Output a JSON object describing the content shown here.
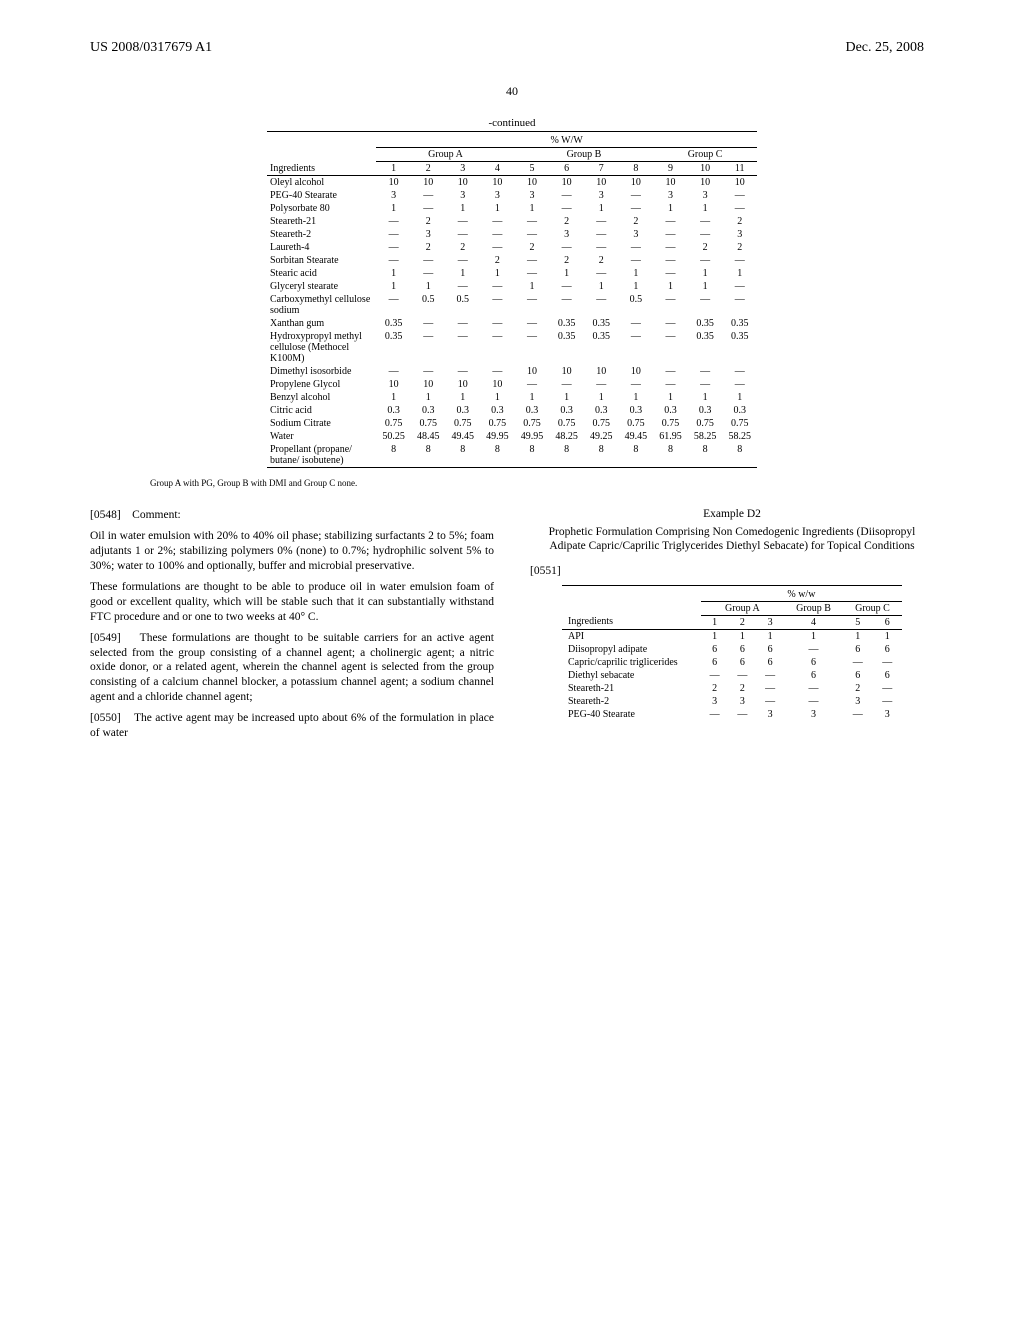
{
  "header": {
    "doc_id": "US 2008/0317679 A1",
    "date": "Dec. 25, 2008",
    "page_number": "40"
  },
  "table1": {
    "continued_label": "-continued",
    "super_header": "% W/W",
    "groups": [
      {
        "label": "Group A",
        "span": 4
      },
      {
        "label": "Group B",
        "span": 4
      },
      {
        "label": "Group C",
        "span": 3
      }
    ],
    "col_header_label": "Ingredients",
    "col_numbers": [
      "1",
      "2",
      "3",
      "4",
      "5",
      "6",
      "7",
      "8",
      "9",
      "10",
      "11"
    ],
    "rows": [
      {
        "label": "Oleyl alcohol",
        "vals": [
          "10",
          "10",
          "10",
          "10",
          "10",
          "10",
          "10",
          "10",
          "10",
          "10",
          "10"
        ]
      },
      {
        "label": "PEG-40 Stearate",
        "vals": [
          "3",
          "—",
          "3",
          "3",
          "3",
          "—",
          "3",
          "—",
          "3",
          "3",
          "—"
        ]
      },
      {
        "label": "Polysorbate 80",
        "vals": [
          "1",
          "—",
          "1",
          "1",
          "1",
          "—",
          "1",
          "—",
          "1",
          "1",
          "—"
        ]
      },
      {
        "label": "Steareth-21",
        "vals": [
          "—",
          "2",
          "—",
          "—",
          "—",
          "2",
          "—",
          "2",
          "—",
          "—",
          "2"
        ]
      },
      {
        "label": "Steareth-2",
        "vals": [
          "—",
          "3",
          "—",
          "—",
          "—",
          "3",
          "—",
          "3",
          "—",
          "—",
          "3"
        ]
      },
      {
        "label": "Laureth-4",
        "vals": [
          "—",
          "2",
          "2",
          "—",
          "2",
          "—",
          "—",
          "—",
          "—",
          "2",
          "2"
        ]
      },
      {
        "label": "Sorbitan Stearate",
        "vals": [
          "—",
          "—",
          "—",
          "2",
          "—",
          "2",
          "2",
          "—",
          "—",
          "—",
          "—"
        ]
      },
      {
        "label": "Stearic acid",
        "vals": [
          "1",
          "—",
          "1",
          "1",
          "—",
          "1",
          "—",
          "1",
          "—",
          "1",
          "1"
        ]
      },
      {
        "label": "Glyceryl stearate",
        "vals": [
          "1",
          "1",
          "—",
          "—",
          "1",
          "—",
          "1",
          "1",
          "1",
          "1",
          "—"
        ]
      },
      {
        "label": "Carboxymethyl cellulose sodium",
        "vals": [
          "—",
          "0.5",
          "0.5",
          "—",
          "—",
          "—",
          "—",
          "0.5",
          "—",
          "—",
          "—"
        ]
      },
      {
        "label": "Xanthan gum",
        "vals": [
          "0.35",
          "—",
          "—",
          "—",
          "—",
          "0.35",
          "0.35",
          "—",
          "—",
          "0.35",
          "0.35"
        ]
      },
      {
        "label": "Hydroxypropyl methyl cellulose (Methocel K100M)",
        "vals": [
          "0.35",
          "—",
          "—",
          "—",
          "—",
          "0.35",
          "0.35",
          "—",
          "—",
          "0.35",
          "0.35"
        ]
      },
      {
        "label": "Dimethyl isosorbide",
        "vals": [
          "—",
          "—",
          "—",
          "—",
          "10",
          "10",
          "10",
          "10",
          "—",
          "—",
          "—"
        ]
      },
      {
        "label": "Propylene Glycol",
        "vals": [
          "10",
          "10",
          "10",
          "10",
          "—",
          "—",
          "—",
          "—",
          "—",
          "—",
          "—"
        ]
      },
      {
        "label": "Benzyl alcohol",
        "vals": [
          "1",
          "1",
          "1",
          "1",
          "1",
          "1",
          "1",
          "1",
          "1",
          "1",
          "1"
        ]
      },
      {
        "label": "Citric acid",
        "vals": [
          "0.3",
          "0.3",
          "0.3",
          "0.3",
          "0.3",
          "0.3",
          "0.3",
          "0.3",
          "0.3",
          "0.3",
          "0.3"
        ]
      },
      {
        "label": "Sodium Citrate",
        "vals": [
          "0.75",
          "0.75",
          "0.75",
          "0.75",
          "0.75",
          "0.75",
          "0.75",
          "0.75",
          "0.75",
          "0.75",
          "0.75"
        ]
      },
      {
        "label": "Water",
        "vals": [
          "50.25",
          "48.45",
          "49.45",
          "49.95",
          "49.95",
          "48.25",
          "49.25",
          "49.45",
          "61.95",
          "58.25",
          "58.25"
        ]
      },
      {
        "label": "Propellant (propane/ butane/ isobutene)",
        "vals": [
          "8",
          "8",
          "8",
          "8",
          "8",
          "8",
          "8",
          "8",
          "8",
          "8",
          "8"
        ]
      }
    ],
    "footnote": "Group A with PG, Group B with DMI and Group C none."
  },
  "left_col": {
    "p1_num": "[0548]",
    "p1_label": "Comment:",
    "p2": "Oil in water emulsion with 20% to 40% oil phase; stabilizing surfactants 2 to 5%; foam adjutants 1 or 2%; stabilizing polymers 0% (none) to 0.7%; hydrophilic solvent 5% to 30%; water to 100% and optionally, buffer and microbial preservative.",
    "p3": "These formulations are thought to be able to produce oil in water emulsion foam of good or excellent quality, which will be stable such that it can substantially withstand FTC procedure and or one to two weeks at 40° C.",
    "p4_num": "[0549]",
    "p4": "These formulations are thought to be suitable carriers for an active agent selected from the group consisting of a channel agent; a cholinergic agent; a nitric oxide donor, or a related agent, wherein the channel agent is selected from the group consisting of a calcium channel blocker, a potassium channel agent; a sodium channel agent and a chloride channel agent;",
    "p5_num": "[0550]",
    "p5": "The active agent may be increased upto about 6% of the formulation in place of water"
  },
  "right_col": {
    "example_label": "Example D2",
    "example_title": "Prophetic Formulation Comprising Non Comedogenic Ingredients (Diisopropyl Adipate Capric/Caprilic Triglycerides Diethyl Sebacate) for Topical Conditions",
    "p_num": "[0551]"
  },
  "table2": {
    "super_header": "% w/w",
    "groups": [
      {
        "label": "Group A",
        "span": 3
      },
      {
        "label": "Group B",
        "span": 1
      },
      {
        "label": "Group C",
        "span": 2
      }
    ],
    "col_header_label": "Ingredients",
    "col_numbers": [
      "1",
      "2",
      "3",
      "4",
      "5",
      "6"
    ],
    "rows": [
      {
        "label": "API",
        "vals": [
          "1",
          "1",
          "1",
          "1",
          "1",
          "1"
        ]
      },
      {
        "label": "Diisopropyl adipate",
        "vals": [
          "6",
          "6",
          "6",
          "—",
          "6",
          "6"
        ]
      },
      {
        "label": "Capric/caprilic triglicerides",
        "vals": [
          "6",
          "6",
          "6",
          "6",
          "—",
          "—"
        ]
      },
      {
        "label": "Diethyl sebacate",
        "vals": [
          "—",
          "—",
          "—",
          "6",
          "6",
          "6"
        ]
      },
      {
        "label": "Steareth-21",
        "vals": [
          "2",
          "2",
          "—",
          "—",
          "2",
          "—"
        ]
      },
      {
        "label": "Steareth-2",
        "vals": [
          "3",
          "3",
          "—",
          "—",
          "3",
          "—"
        ]
      },
      {
        "label": "PEG-40 Stearate",
        "vals": [
          "—",
          "—",
          "3",
          "3",
          "—",
          "3"
        ]
      }
    ]
  }
}
